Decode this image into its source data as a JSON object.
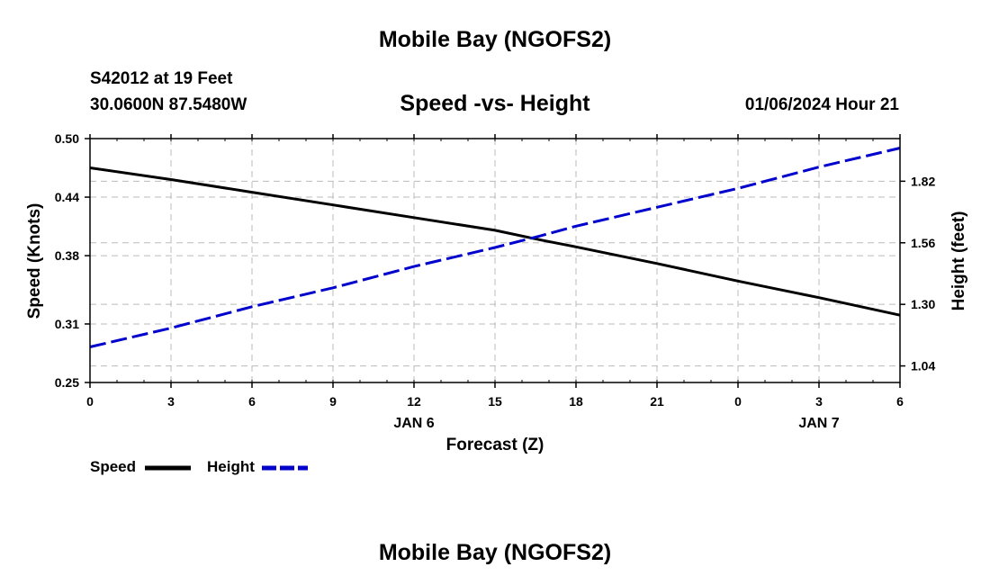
{
  "header": {
    "title": "Mobile Bay (NGOFS2)",
    "station": "S42012 at 19 Feet",
    "coords": "30.0600N  87.5480W",
    "chart_title": "Speed -vs- Height",
    "datetime": "01/06/2024 Hour 21"
  },
  "footer": {
    "title": "Mobile Bay (NGOFS2)"
  },
  "chart_data": {
    "type": "line",
    "title": "Speed -vs- Height",
    "xlabel": "Forecast (Z)",
    "ylabel": "Speed (Knots)",
    "y2label": "Height (feet)",
    "x_ticks": [
      "0",
      "3",
      "6",
      "9",
      "12",
      "15",
      "18",
      "21",
      "0",
      "3",
      "6"
    ],
    "x_hours_range": [
      0,
      30
    ],
    "date_labels": [
      {
        "label": "JAN 6",
        "hour": 12
      },
      {
        "label": "JAN 7",
        "hour": 27
      }
    ],
    "ylim": [
      0.25,
      0.5
    ],
    "y_ticks": [
      "0.50",
      "0.44",
      "0.38",
      "0.31",
      "0.25"
    ],
    "y2lim": [
      0.97,
      2.0
    ],
    "y2_ticks": [
      "1.82",
      "1.56",
      "1.30",
      "1.04"
    ],
    "grid": true,
    "legend_position": "bottom-left",
    "series": [
      {
        "name": "Speed",
        "axis": "left",
        "color": "#000000",
        "style": "solid",
        "x": [
          0,
          3,
          6,
          9,
          12,
          15,
          16.7,
          18,
          21,
          24,
          27,
          30
        ],
        "values": [
          0.47,
          0.458,
          0.445,
          0.432,
          0.419,
          0.406,
          0.396,
          0.389,
          0.372,
          0.354,
          0.337,
          0.319
        ]
      },
      {
        "name": "Height",
        "axis": "right",
        "color": "#0000cc",
        "style": "dashed",
        "x": [
          0,
          3,
          6,
          9,
          12,
          15,
          16.7,
          18,
          21,
          24,
          27,
          30
        ],
        "values": [
          1.12,
          1.2,
          1.29,
          1.37,
          1.46,
          1.54,
          1.59,
          1.63,
          1.71,
          1.79,
          1.88,
          1.96
        ]
      }
    ]
  },
  "legend": {
    "speed_label": "Speed",
    "height_label": "Height"
  }
}
